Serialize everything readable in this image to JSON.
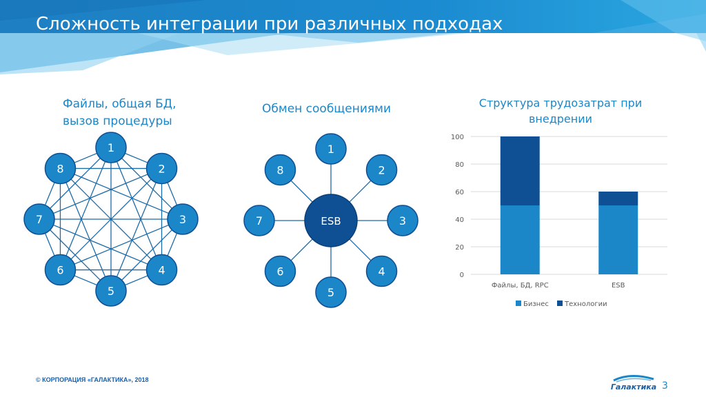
{
  "slide_title": "Сложность интеграции при различных подходах",
  "left_diagram": {
    "title_line1": "Файлы, общая БД,",
    "title_line2": "вызов процедуры",
    "nodes": [
      "1",
      "2",
      "3",
      "4",
      "5",
      "6",
      "7",
      "8"
    ]
  },
  "middle_diagram": {
    "title": "Обмен сообщениями",
    "hub_label": "ESB",
    "nodes": [
      "1",
      "2",
      "3",
      "4",
      "5",
      "6",
      "7",
      "8"
    ]
  },
  "chart_data": {
    "type": "bar",
    "stacked": true,
    "title_line1": "Структура трудозатрат при",
    "title_line2": "внедрении",
    "categories": [
      "Файлы, БД, RPC",
      "ESB"
    ],
    "series": [
      {
        "name": "Бизнес",
        "values": [
          50,
          50
        ],
        "color": "#1b87c9"
      },
      {
        "name": "Технологии",
        "values": [
          50,
          10
        ],
        "color": "#0f4f93"
      }
    ],
    "yticks": [
      "0",
      "20",
      "40",
      "60",
      "80",
      "100"
    ],
    "ylim": [
      0,
      100
    ],
    "grid": true,
    "legend_position": "bottom"
  },
  "colors": {
    "node_fill": "#1b87c9",
    "node_stroke": "#0f4f93",
    "hub_fill": "#0f4f93",
    "line": "#1a6aa8",
    "accent": "#1b87c9"
  },
  "footer": {
    "copyright": "© КОРПОРАЦИЯ «ГАЛАКТИКА», 2018",
    "page_number": "3"
  }
}
